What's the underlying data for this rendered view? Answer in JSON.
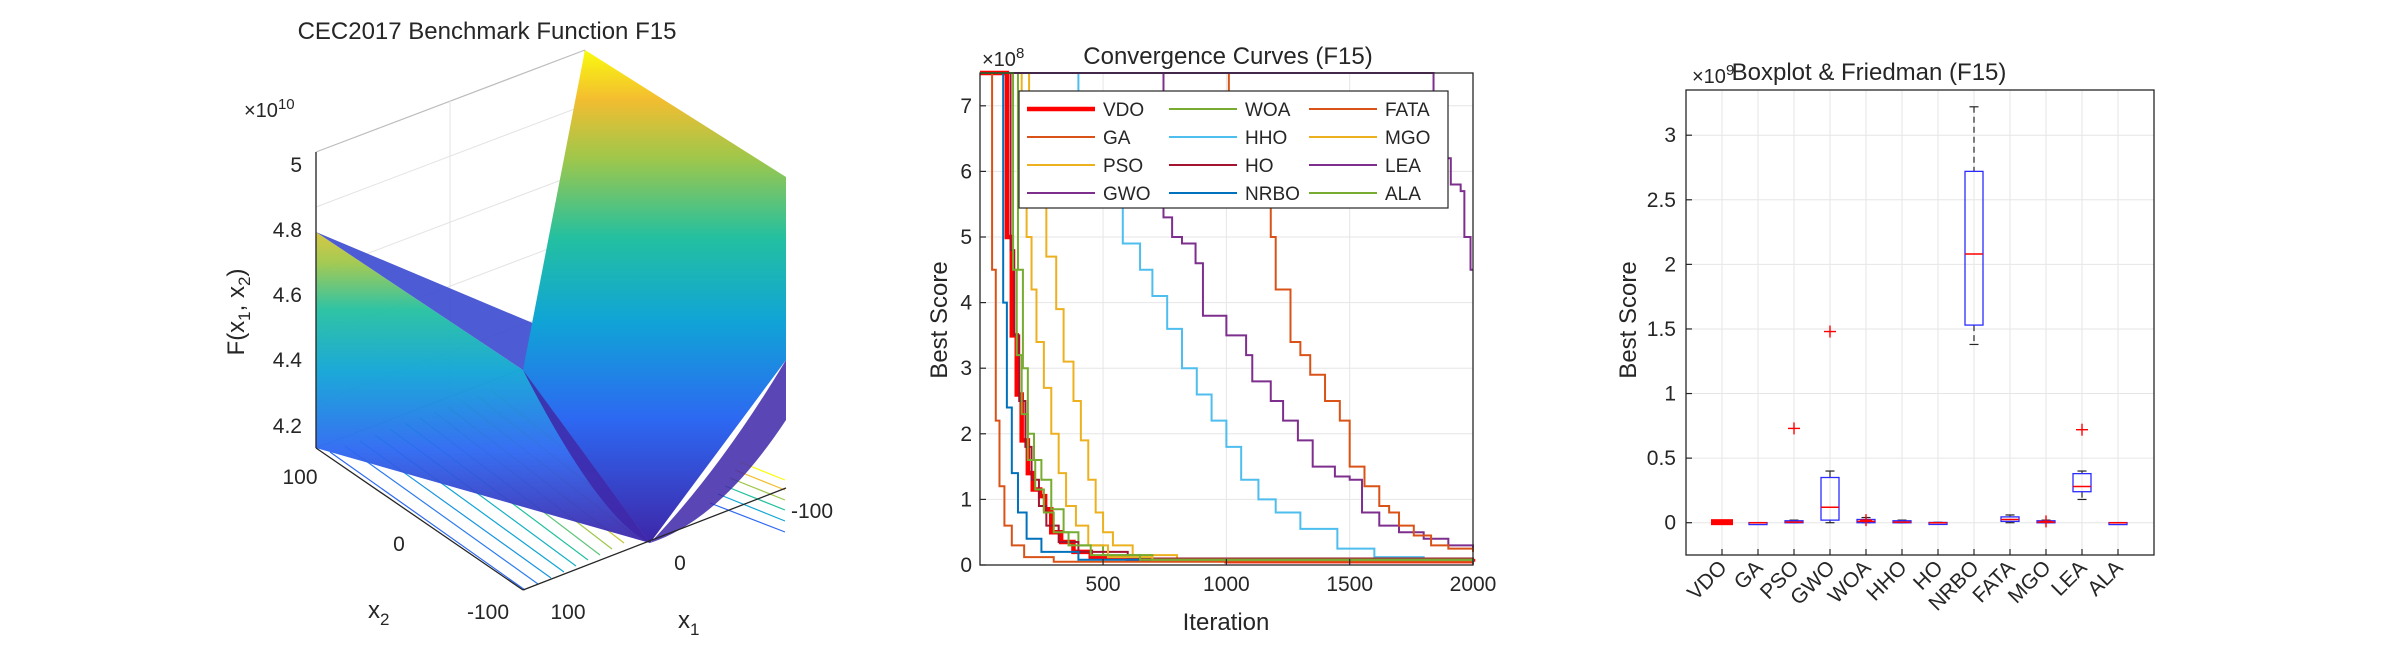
{
  "chart_data": [
    {
      "type": "surface3d",
      "title": "CEC2017 Benchmark Function F15",
      "zlabel": "F(x1, x2)",
      "zlabel_main": "F(x",
      "zlabel_sub1": "1",
      "zlabel_mid": ", x",
      "zlabel_sub2": "2",
      "zlabel_end": ")",
      "xlabel_main": "x",
      "xlabel_sub": "1",
      "ylabel_main": "x",
      "ylabel_sub": "2",
      "exponent_base": "×10",
      "exponent_power": "10",
      "z_ticks": [
        "5",
        "4.8",
        "4.6",
        "4.4",
        "4.2"
      ],
      "x_ticks": [
        "100",
        "0",
        "-100"
      ],
      "y_ticks": [
        "100",
        "0",
        "-100"
      ],
      "zlim": [
        4.15,
        5.05
      ],
      "colormap": [
        "#3e26a8",
        "#2d68f2",
        "#10a4d6",
        "#24c0a0",
        "#9fc74b",
        "#f3bd30",
        "#f9fb0e"
      ]
    },
    {
      "type": "line",
      "title": "Convergence Curves (F15)",
      "xlabel": "Iteration",
      "ylabel": "Best Score",
      "exponent_base": "×10",
      "exponent_power": "8",
      "xlim": [
        1,
        2000
      ],
      "ylim": [
        0,
        7.5
      ],
      "x_ticks": [
        500,
        1000,
        1500,
        2000
      ],
      "y_ticks": [
        0,
        1,
        2,
        3,
        4,
        5,
        6,
        7
      ],
      "series": [
        {
          "name": "VDO",
          "color": "#ff0000",
          "width": 4.5,
          "points": [
            [
              1,
              7.5
            ],
            [
              95,
              7.5
            ],
            [
              110,
              5.0
            ],
            [
              130,
              3.5
            ],
            [
              150,
              2.6
            ],
            [
              170,
              1.9
            ],
            [
              195,
              1.4
            ],
            [
              215,
              1.15
            ],
            [
              245,
              1.05
            ],
            [
              265,
              0.85
            ],
            [
              290,
              0.5
            ],
            [
              330,
              0.35
            ],
            [
              380,
              0.2
            ],
            [
              450,
              0.12
            ],
            [
              600,
              0.08
            ],
            [
              1000,
              0.06
            ],
            [
              2000,
              0.05
            ]
          ]
        },
        {
          "name": "GA",
          "color": "#d95319",
          "width": 2,
          "points": [
            [
              1,
              7.5
            ],
            [
              40,
              7.5
            ],
            [
              50,
              4.5
            ],
            [
              65,
              2.2
            ],
            [
              80,
              1.2
            ],
            [
              100,
              0.6
            ],
            [
              130,
              0.3
            ],
            [
              180,
              0.12
            ],
            [
              300,
              0.05
            ],
            [
              2000,
              0.01
            ]
          ]
        },
        {
          "name": "PSO",
          "color": "#edb120",
          "width": 2,
          "points": [
            [
              1,
              7.5
            ],
            [
              190,
              7.5
            ],
            [
              200,
              7.0
            ],
            [
              215,
              6.4
            ],
            [
              235,
              5.6
            ],
            [
              270,
              4.7
            ],
            [
              310,
              3.9
            ],
            [
              340,
              3.1
            ],
            [
              380,
              2.5
            ],
            [
              410,
              1.9
            ],
            [
              440,
              1.3
            ],
            [
              470,
              0.8
            ],
            [
              500,
              0.5
            ],
            [
              540,
              0.3
            ],
            [
              620,
              0.15
            ],
            [
              800,
              0.1
            ],
            [
              2000,
              0.08
            ]
          ]
        },
        {
          "name": "GWO",
          "color": "#7e2f8e",
          "width": 2,
          "points": [
            [
              1,
              7.5
            ],
            [
              740,
              7.5
            ],
            [
              745,
              5.3
            ],
            [
              780,
              5.0
            ],
            [
              820,
              4.9
            ],
            [
              875,
              4.6
            ],
            [
              905,
              3.8
            ],
            [
              1000,
              3.5
            ],
            [
              1080,
              3.2
            ],
            [
              1105,
              2.8
            ],
            [
              1180,
              2.5
            ],
            [
              1230,
              2.2
            ],
            [
              1290,
              1.9
            ],
            [
              1350,
              1.5
            ],
            [
              1440,
              1.35
            ],
            [
              1500,
              1.3
            ],
            [
              1550,
              0.8
            ],
            [
              1620,
              0.6
            ],
            [
              1700,
              0.5
            ],
            [
              1800,
              0.4
            ],
            [
              1900,
              0.3
            ],
            [
              2000,
              0.25
            ]
          ]
        },
        {
          "name": "WOA",
          "color": "#77ac30",
          "width": 2,
          "points": [
            [
              1,
              7.5
            ],
            [
              140,
              7.5
            ],
            [
              155,
              4.5
            ],
            [
              175,
              3.0
            ],
            [
              195,
              2.0
            ],
            [
              220,
              1.6
            ],
            [
              250,
              1.3
            ],
            [
              290,
              0.85
            ],
            [
              340,
              0.5
            ],
            [
              400,
              0.3
            ],
            [
              500,
              0.15
            ],
            [
              700,
              0.08
            ],
            [
              2000,
              0.06
            ]
          ]
        },
        {
          "name": "HHO",
          "color": "#4dbeee",
          "width": 2,
          "points": [
            [
              1,
              7.5
            ],
            [
              395,
              7.5
            ],
            [
              400,
              6.4
            ],
            [
              430,
              6.0
            ],
            [
              470,
              5.9
            ],
            [
              520,
              5.5
            ],
            [
              580,
              4.9
            ],
            [
              650,
              4.5
            ],
            [
              700,
              4.1
            ],
            [
              760,
              3.6
            ],
            [
              820,
              3.0
            ],
            [
              880,
              2.6
            ],
            [
              940,
              2.2
            ],
            [
              1000,
              1.8
            ],
            [
              1060,
              1.3
            ],
            [
              1130,
              1.0
            ],
            [
              1200,
              0.8
            ],
            [
              1300,
              0.55
            ],
            [
              1450,
              0.25
            ],
            [
              1600,
              0.12
            ],
            [
              1800,
              0.08
            ],
            [
              2000,
              0.07
            ]
          ]
        },
        {
          "name": "HO",
          "color": "#a2142f",
          "width": 2,
          "points": [
            [
              1,
              7.5
            ],
            [
              115,
              7.5
            ],
            [
              125,
              4.8
            ],
            [
              140,
              3.5
            ],
            [
              160,
              2.5
            ],
            [
              185,
              1.8
            ],
            [
              210,
              1.3
            ],
            [
              240,
              0.9
            ],
            [
              270,
              0.6
            ],
            [
              320,
              0.35
            ],
            [
              400,
              0.2
            ],
            [
              600,
              0.1
            ],
            [
              2000,
              0.06
            ]
          ]
        },
        {
          "name": "NRBO",
          "color": "#0072bd",
          "width": 2,
          "points": [
            [
              1,
              7.5
            ],
            [
              85,
              7.5
            ],
            [
              95,
              4.0
            ],
            [
              110,
              2.4
            ],
            [
              130,
              1.4
            ],
            [
              155,
              0.8
            ],
            [
              190,
              0.4
            ],
            [
              250,
              0.2
            ],
            [
              400,
              0.08
            ],
            [
              2000,
              0.04
            ]
          ]
        },
        {
          "name": "FATA",
          "color": "#d95319",
          "width": 2,
          "points": [
            [
              1,
              7.5
            ],
            [
              1005,
              7.5
            ],
            [
              1010,
              5.6
            ],
            [
              1080,
              5.5
            ],
            [
              1180,
              5.0
            ],
            [
              1200,
              4.2
            ],
            [
              1260,
              3.4
            ],
            [
              1300,
              3.2
            ],
            [
              1340,
              2.9
            ],
            [
              1400,
              2.5
            ],
            [
              1460,
              2.2
            ],
            [
              1500,
              1.5
            ],
            [
              1560,
              1.2
            ],
            [
              1620,
              0.9
            ],
            [
              1660,
              0.8
            ],
            [
              1700,
              0.6
            ],
            [
              1760,
              0.45
            ],
            [
              1830,
              0.3
            ],
            [
              1900,
              0.25
            ],
            [
              2000,
              0.2
            ]
          ]
        },
        {
          "name": "MGO",
          "color": "#edb120",
          "width": 2,
          "points": [
            [
              1,
              7.5
            ],
            [
              160,
              7.5
            ],
            [
              170,
              5.9
            ],
            [
              190,
              5.0
            ],
            [
              210,
              4.2
            ],
            [
              230,
              3.4
            ],
            [
              260,
              2.7
            ],
            [
              290,
              2.0
            ],
            [
              320,
              1.4
            ],
            [
              350,
              0.9
            ],
            [
              390,
              0.6
            ],
            [
              440,
              0.3
            ],
            [
              520,
              0.12
            ],
            [
              700,
              0.08
            ],
            [
              2000,
              0.06
            ]
          ]
        },
        {
          "name": "LEA",
          "color": "#7e2f8e",
          "width": 2,
          "points": [
            [
              1,
              7.5
            ],
            [
              1830,
              7.5
            ],
            [
              1840,
              6.6
            ],
            [
              1890,
              6.2
            ],
            [
              1910,
              5.8
            ],
            [
              1950,
              5.7
            ],
            [
              1965,
              5.0
            ],
            [
              1990,
              4.5
            ],
            [
              2000,
              4.5
            ]
          ]
        },
        {
          "name": "ALA",
          "color": "#77ac30",
          "width": 2,
          "points": [
            [
              1,
              7.5
            ],
            [
              125,
              7.5
            ],
            [
              135,
              4.5
            ],
            [
              150,
              3.2
            ],
            [
              170,
              2.3
            ],
            [
              195,
              1.6
            ],
            [
              225,
              1.15
            ],
            [
              260,
              0.8
            ],
            [
              300,
              0.5
            ],
            [
              360,
              0.3
            ],
            [
              450,
              0.15
            ],
            [
              650,
              0.08
            ],
            [
              2000,
              0.06
            ]
          ]
        }
      ]
    },
    {
      "type": "boxplot",
      "title": "Boxplot & Friedman (F15)",
      "ylabel": "Best Score",
      "exponent_base": "×10",
      "exponent_power": "9",
      "ylim": [
        -0.25,
        3.35
      ],
      "y_ticks": [
        0,
        0.5,
        1,
        1.5,
        2,
        2.5,
        3
      ],
      "y_tick_labels": [
        "0",
        "0.5",
        "1",
        "1.5",
        "2",
        "2.5",
        "3"
      ],
      "categories": [
        "VDO",
        "GA",
        "PSO",
        "GWO",
        "WOA",
        "HHO",
        "HO",
        "NRBO",
        "FATA",
        "MGO",
        "LEA",
        "ALA"
      ],
      "boxes": [
        {
          "name": "VDO",
          "q1": 0.0,
          "median": 0.003,
          "q3": 0.012,
          "lower": 0.0,
          "upper": 0.015,
          "outliers": [],
          "thick": true
        },
        {
          "name": "GA",
          "q1": 0.0,
          "median": 0.0,
          "q3": 0.001,
          "lower": 0.0,
          "upper": 0.001,
          "outliers": []
        },
        {
          "name": "PSO",
          "q1": 0.0,
          "median": 0.005,
          "q3": 0.015,
          "lower": 0.0,
          "upper": 0.02,
          "outliers": [
            0.73
          ]
        },
        {
          "name": "GWO",
          "q1": 0.02,
          "median": 0.12,
          "q3": 0.35,
          "lower": 0.0,
          "upper": 0.4,
          "outliers": [
            1.48
          ]
        },
        {
          "name": "WOA",
          "q1": 0.0,
          "median": 0.01,
          "q3": 0.025,
          "lower": 0.0,
          "upper": 0.04,
          "outliers": [
            0.02
          ]
        },
        {
          "name": "HHO",
          "q1": 0.0,
          "median": 0.005,
          "q3": 0.015,
          "lower": 0.0,
          "upper": 0.02,
          "outliers": []
        },
        {
          "name": "HO",
          "q1": 0.0,
          "median": 0.0,
          "q3": 0.002,
          "lower": 0.0,
          "upper": 0.003,
          "outliers": []
        },
        {
          "name": "NRBO",
          "q1": 1.53,
          "median": 2.08,
          "q3": 2.72,
          "lower": 1.38,
          "upper": 3.22,
          "outliers": []
        },
        {
          "name": "FATA",
          "q1": 0.01,
          "median": 0.025,
          "q3": 0.045,
          "lower": 0.0,
          "upper": 0.06,
          "outliers": []
        },
        {
          "name": "MGO",
          "q1": 0.0,
          "median": 0.005,
          "q3": 0.015,
          "lower": 0.0,
          "upper": 0.02,
          "outliers": [
            0.01
          ]
        },
        {
          "name": "LEA",
          "q1": 0.24,
          "median": 0.28,
          "q3": 0.38,
          "lower": 0.18,
          "upper": 0.4,
          "outliers": [
            0.72
          ]
        },
        {
          "name": "ALA",
          "q1": 0.0,
          "median": 0.0,
          "q3": 0.001,
          "lower": 0.0,
          "upper": 0.001,
          "outliers": []
        }
      ]
    }
  ]
}
